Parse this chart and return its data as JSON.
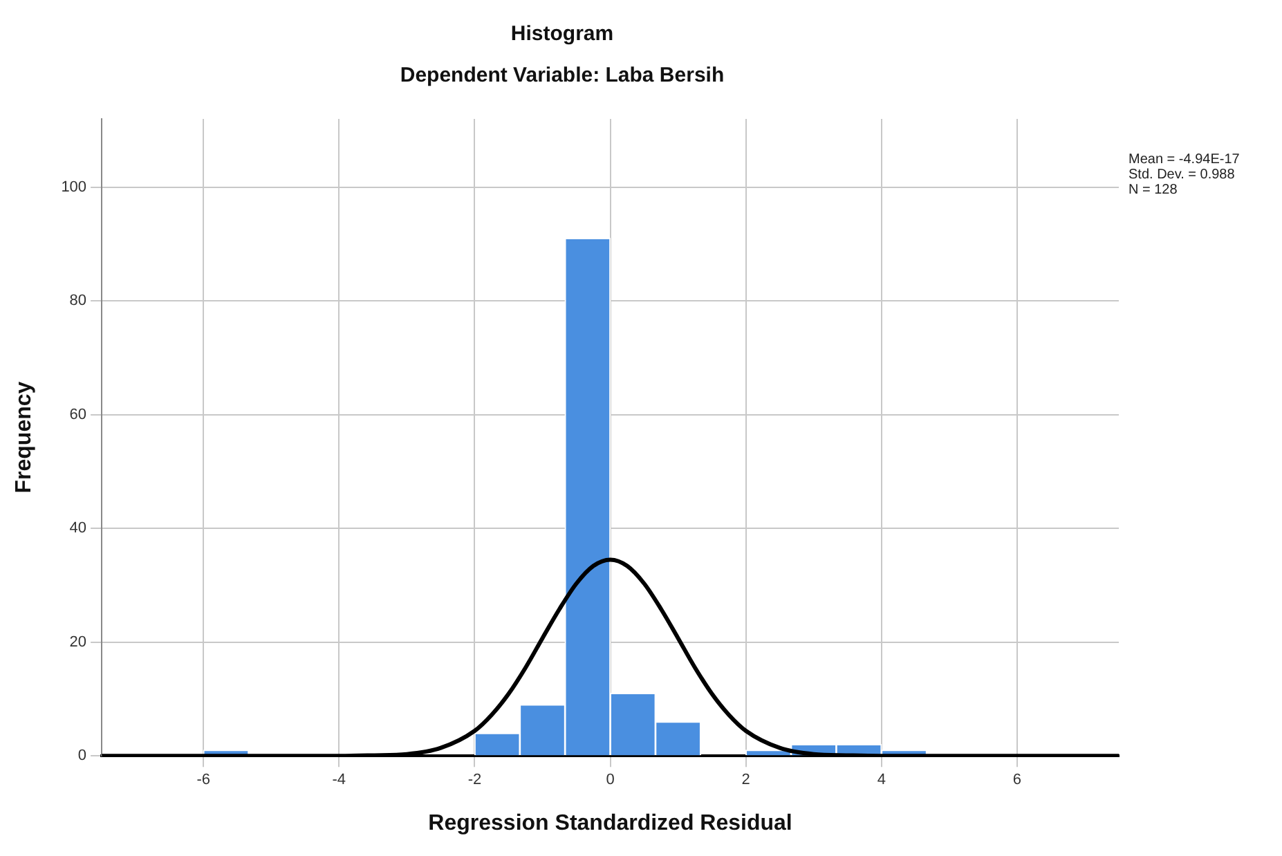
{
  "chart_data": {
    "type": "histogram",
    "title": "Histogram",
    "subtitle": "Dependent Variable: Laba Bersih",
    "xlabel": "Regression Standardized Residual",
    "ylabel": "Frequency",
    "bins": [
      -6,
      -5.333,
      -4.667,
      -4,
      -3.333,
      -2.667,
      -2,
      -1.333,
      -0.667,
      0,
      0.667,
      1.333,
      2,
      2.667,
      3.333,
      4,
      4.667
    ],
    "values": [
      1,
      0,
      0,
      0,
      0,
      0,
      4,
      9,
      91,
      11,
      6,
      0,
      1,
      2,
      2,
      1
    ],
    "color": "#4a8fe0",
    "series": [
      {
        "type": "line",
        "color": "#000000",
        "x": [
          -7.5,
          -4,
          -3.5,
          -3,
          -2.5,
          -2,
          -1.75,
          -1.5,
          -1.25,
          -1,
          -0.75,
          -0.5,
          -0.25,
          0,
          0.25,
          0.5,
          0.75,
          1,
          1.25,
          1.5,
          1.75,
          2,
          2.5,
          3,
          3.5,
          4,
          7.5
        ],
        "values": [
          0,
          0,
          0.1,
          0.3,
          1.4,
          4.4,
          7.2,
          10.9,
          15.5,
          20.7,
          25.8,
          30.3,
          33.4,
          34.5,
          33.4,
          30.3,
          25.8,
          20.7,
          15.5,
          10.9,
          7.2,
          4.4,
          1.4,
          0.3,
          0.1,
          0,
          0
        ]
      }
    ],
    "xlim": [
      -7.5,
      7.5
    ],
    "xticks": [
      -6,
      -4,
      -2,
      0,
      2,
      4,
      6
    ],
    "ylim": [
      0,
      112
    ],
    "yticks": [
      0,
      20,
      40,
      60,
      80,
      100
    ],
    "grid": true,
    "legend": false,
    "annotations": [
      "Mean = -4.94E-17",
      "Std. Dev. = 0.988",
      "N = 128"
    ]
  }
}
